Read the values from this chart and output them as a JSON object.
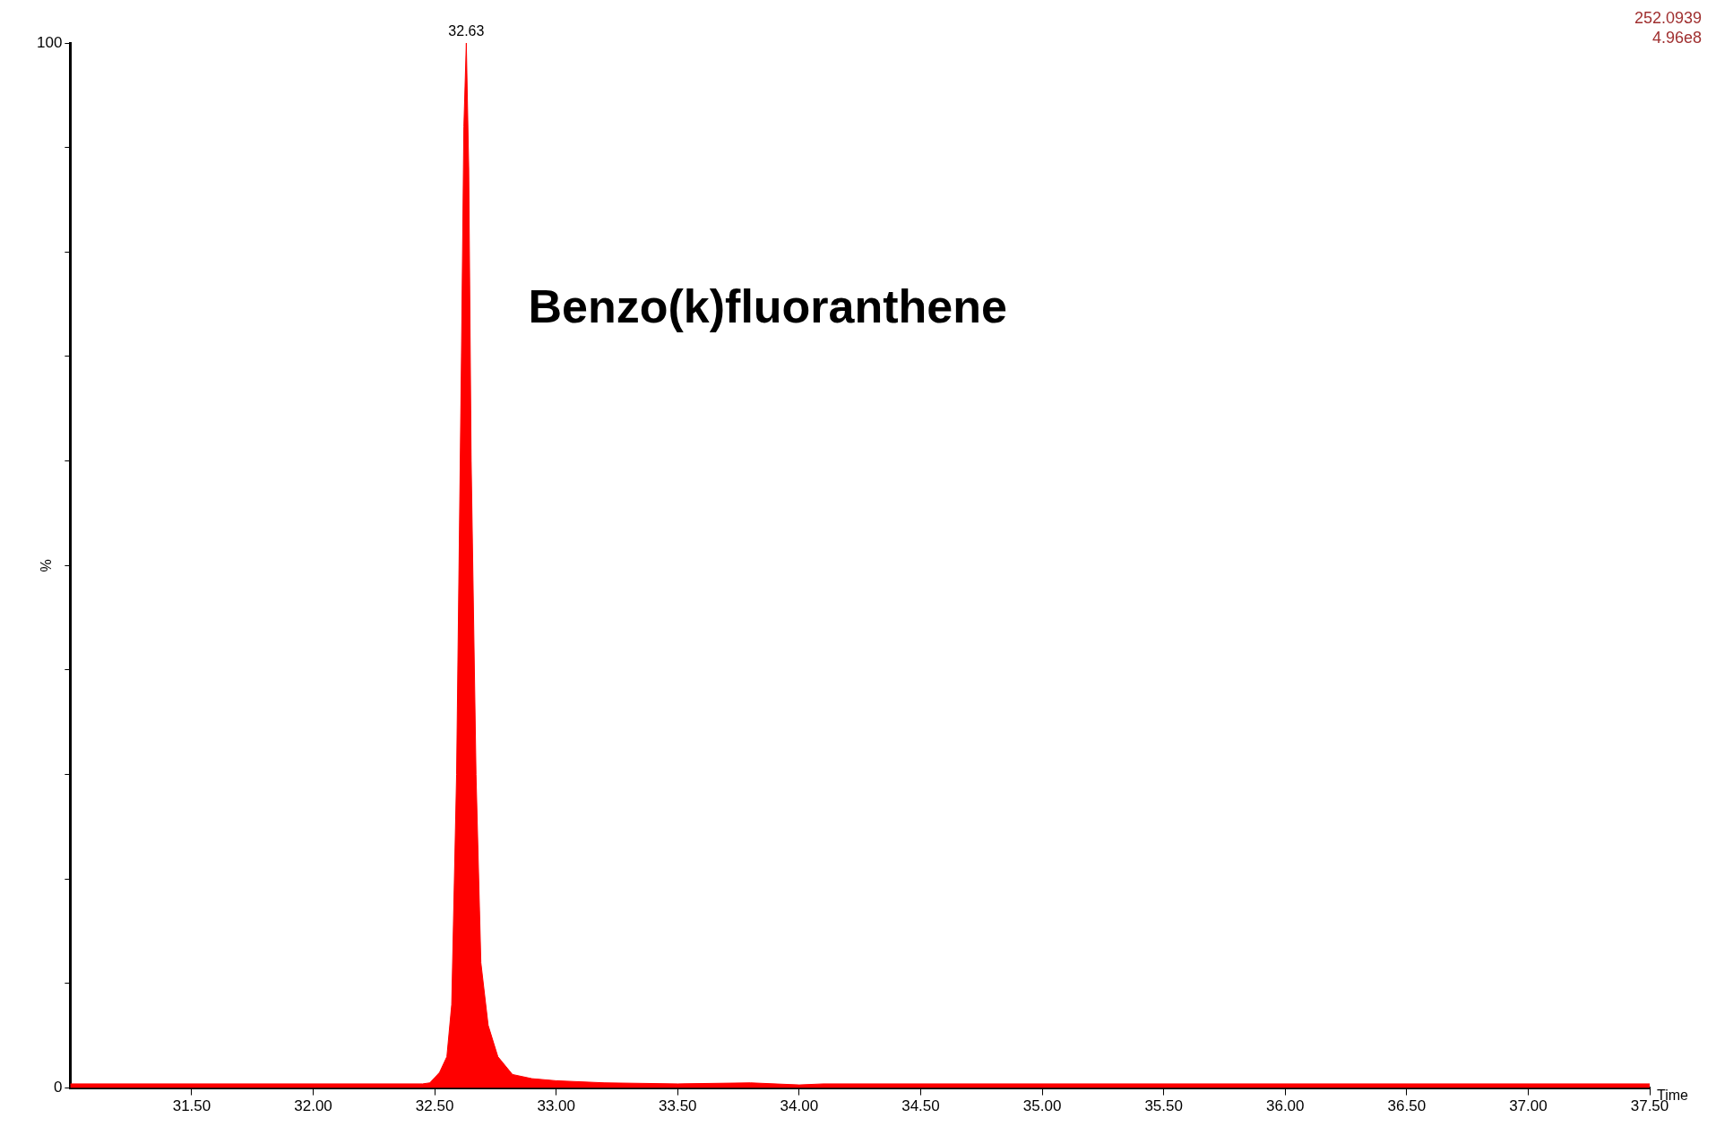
{
  "chart_data": {
    "type": "area",
    "xlabel": "Time",
    "ylabel": "%",
    "x": [
      31.0,
      32.45,
      32.48,
      32.52,
      32.55,
      32.57,
      32.59,
      32.61,
      32.62,
      32.63,
      32.64,
      32.65,
      32.67,
      32.69,
      32.72,
      32.76,
      32.82,
      32.9,
      33.0,
      33.2,
      33.5,
      33.8,
      34.0,
      34.1,
      37.5
    ],
    "series": [
      {
        "color": "#ff0000",
        "values": [
          0.4,
          0.4,
          0.5,
          1.5,
          3,
          8,
          30,
          70,
          92,
          100,
          88,
          60,
          30,
          12,
          6,
          3,
          1.3,
          0.9,
          0.7,
          0.5,
          0.4,
          0.5,
          0.3,
          0.4,
          0.4
        ]
      }
    ],
    "xlim": [
      31.0,
      37.5
    ],
    "xticks": [
      {
        "value": 31.5,
        "label": "31.50"
      },
      {
        "value": 32,
        "label": "32.00"
      },
      {
        "value": 32.5,
        "label": "32.50"
      },
      {
        "value": 33,
        "label": "33.00"
      },
      {
        "value": 33.5,
        "label": "33.50"
      },
      {
        "value": 34,
        "label": "34.00"
      },
      {
        "value": 34.5,
        "label": "34.50"
      },
      {
        "value": 35,
        "label": "35.00"
      },
      {
        "value": 35.5,
        "label": "35.50"
      },
      {
        "value": 36,
        "label": "36.00"
      },
      {
        "value": 36.5,
        "label": "36.50"
      },
      {
        "value": 37,
        "label": "37.00"
      },
      {
        "value": 37.5,
        "label": "37.50"
      }
    ],
    "ylim": [
      0,
      100
    ],
    "yticks": [
      0,
      {
        "value": 10,
        "label": null
      },
      {
        "value": 20,
        "label": null
      },
      {
        "value": 30,
        "label": null
      },
      {
        "value": 40,
        "label": null
      },
      {
        "value": 50,
        "label": null
      },
      {
        "value": 60,
        "label": null
      },
      {
        "value": 70,
        "label": null
      },
      {
        "value": 80,
        "label": null
      },
      {
        "value": 90,
        "label": null
      },
      100
    ],
    "grid": false,
    "legend": false,
    "annotations": [
      "Benzo(k)fluoranthene",
      "252.0939",
      "4.96e8",
      {
        "text": "32.63",
        "x": 32.63,
        "y": 100
      }
    ]
  }
}
